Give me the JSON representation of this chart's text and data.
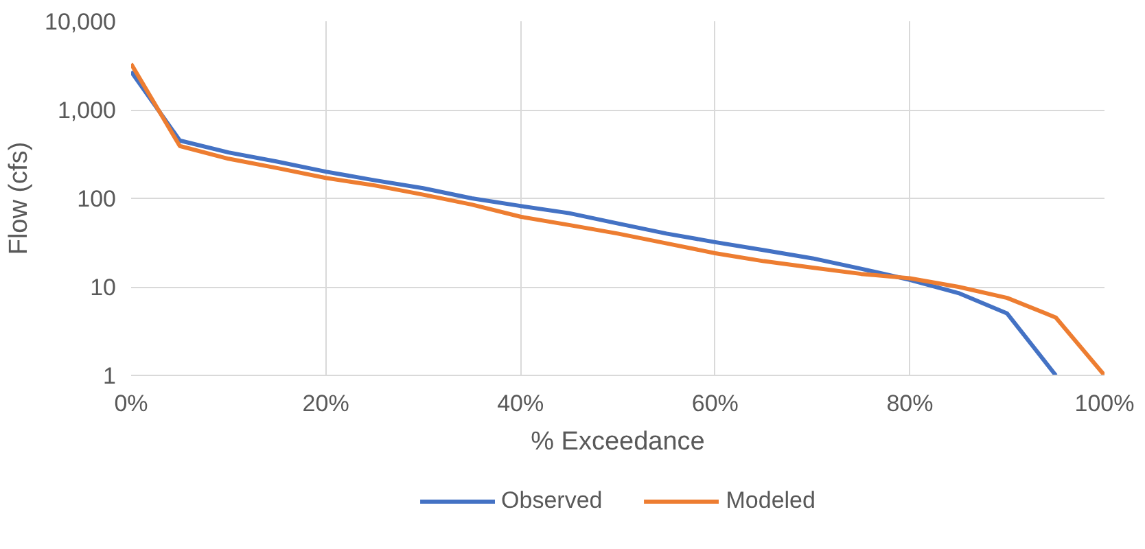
{
  "chart_data": {
    "type": "line",
    "xlabel": "% Exceedance",
    "ylabel": "Flow (cfs)",
    "x": [
      0,
      5,
      10,
      15,
      20,
      25,
      30,
      35,
      40,
      45,
      50,
      55,
      60,
      65,
      70,
      75,
      80,
      85,
      90,
      95,
      100
    ],
    "series": [
      {
        "name": "Observed",
        "color": "#4472c4",
        "values": [
          2700,
          450,
          330,
          260,
          200,
          160,
          130,
          100,
          82,
          68,
          52,
          40,
          32,
          26,
          21,
          16,
          12,
          8.5,
          5,
          1,
          null
        ]
      },
      {
        "name": "Modeled",
        "color": "#ed7d31",
        "values": [
          3300,
          390,
          280,
          220,
          170,
          140,
          110,
          85,
          62,
          50,
          40,
          31,
          24,
          19.5,
          16.5,
          14,
          12.5,
          10,
          7.5,
          4.5,
          1
        ]
      }
    ],
    "log": "y",
    "xlim": [
      0,
      100
    ],
    "ylim": [
      1,
      10000
    ],
    "xticks": [
      {
        "value": 0,
        "label": "0%"
      },
      {
        "value": 20,
        "label": "20%"
      },
      {
        "value": 40,
        "label": "40%"
      },
      {
        "value": 60,
        "label": "60%"
      },
      {
        "value": 80,
        "label": "80%"
      },
      {
        "value": 100,
        "label": "100%"
      }
    ],
    "yticks": [
      {
        "value": 1,
        "label": "1"
      },
      {
        "value": 10,
        "label": "10"
      },
      {
        "value": 100,
        "label": "100"
      },
      {
        "value": 1000,
        "label": "1,000"
      },
      {
        "value": 10000,
        "label": "10,000"
      }
    ],
    "grid": true,
    "legend": "bottom",
    "marker": "none",
    "line_style": "solid"
  }
}
